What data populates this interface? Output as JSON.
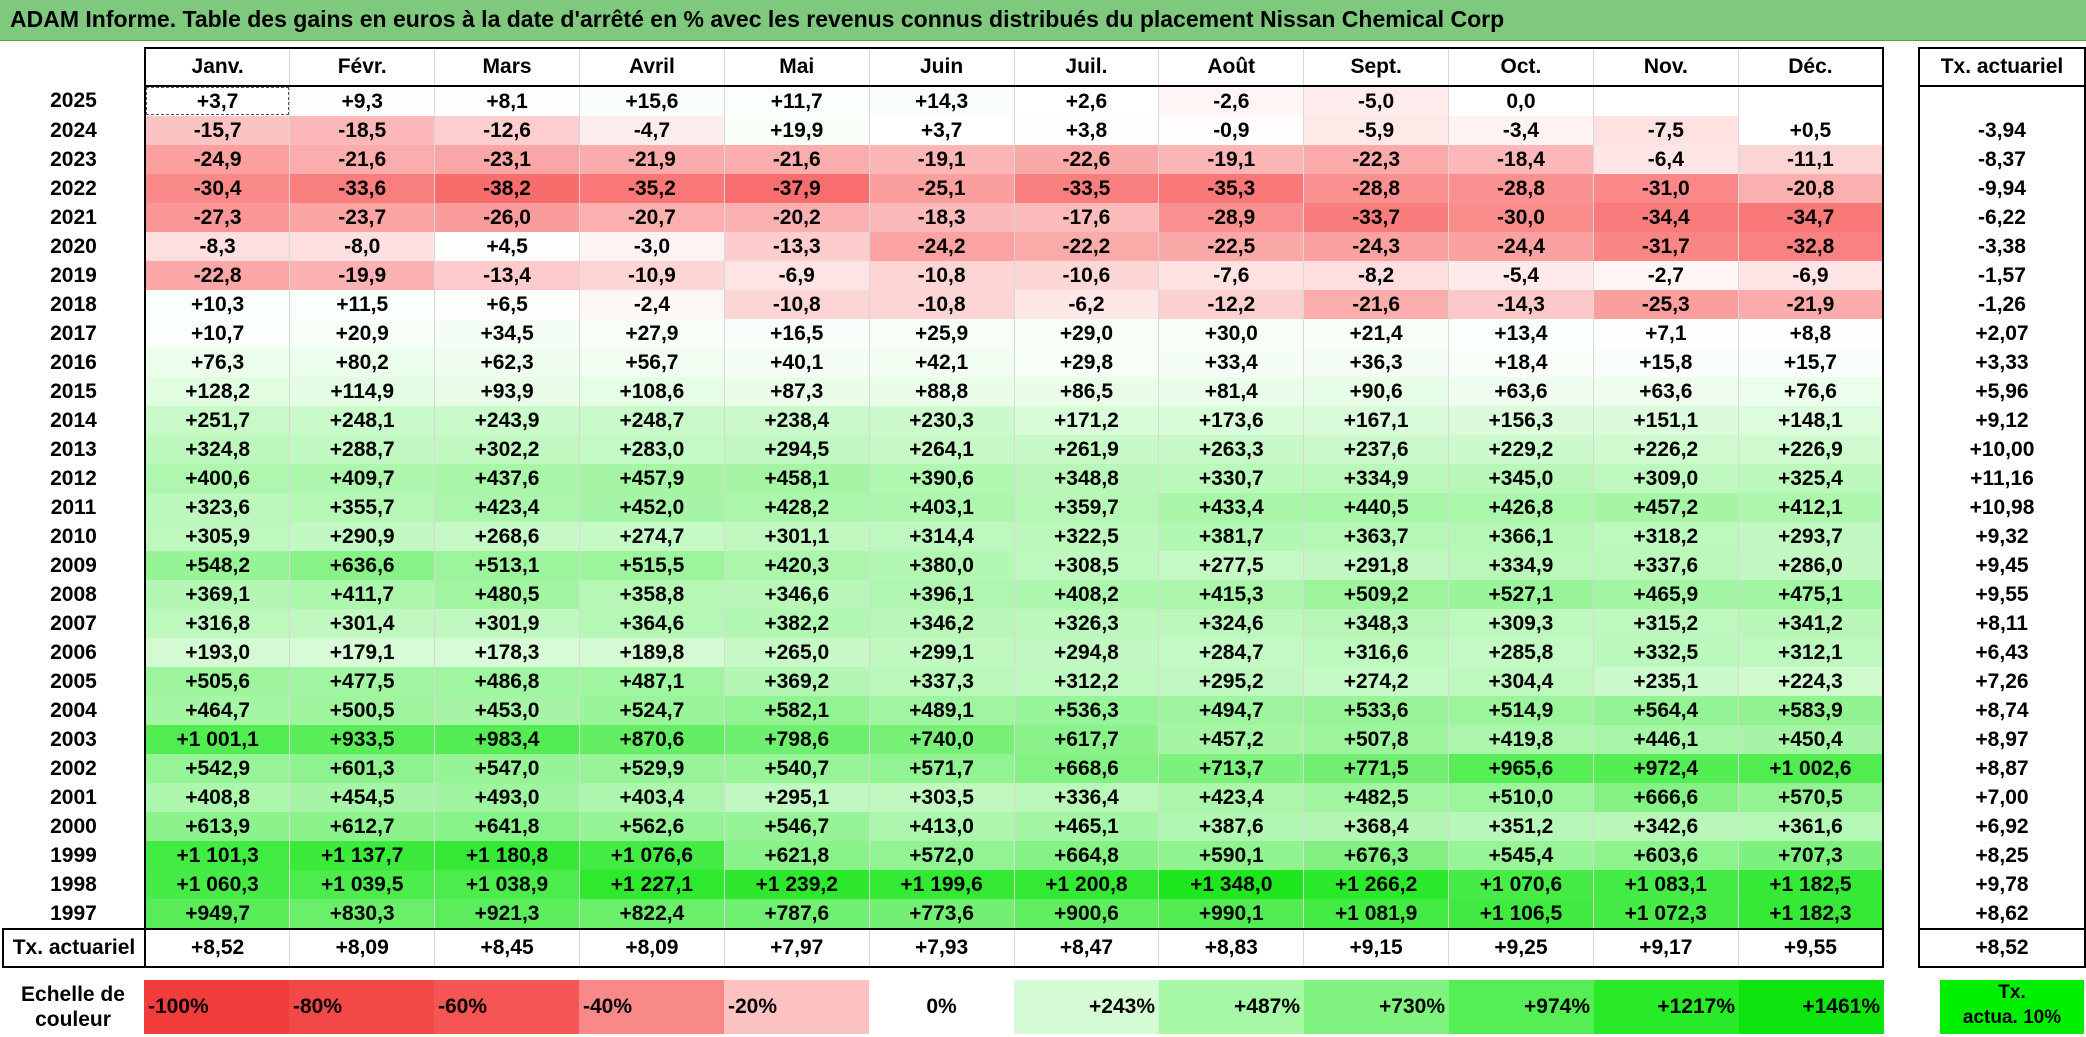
{
  "title": "ADAM Informe. Table des gains en euros à la date d'arrêté en % avec les revenus connus distribués du placement Nissan Chemical Corp",
  "months": [
    "Janv.",
    "Févr.",
    "Mars",
    "Avril",
    "Mai",
    "Juin",
    "Juil.",
    "Août",
    "Sept.",
    "Oct.",
    "Nov.",
    "Déc."
  ],
  "rate_header": "Tx. actuariel",
  "rows": [
    {
      "year": "2025",
      "values": [
        "+3,7",
        "+9,3",
        "+8,1",
        "+15,6",
        "+11,7",
        "+14,3",
        "+2,6",
        "-2,6",
        "-5,0",
        "0,0",
        "",
        ""
      ],
      "rate": ""
    },
    {
      "year": "2024",
      "values": [
        "-15,7",
        "-18,5",
        "-12,6",
        "-4,7",
        "+19,9",
        "+3,7",
        "+3,8",
        "-0,9",
        "-5,9",
        "-3,4",
        "-7,5",
        "+0,5"
      ],
      "rate": "-3,94"
    },
    {
      "year": "2023",
      "values": [
        "-24,9",
        "-21,6",
        "-23,1",
        "-21,9",
        "-21,6",
        "-19,1",
        "-22,6",
        "-19,1",
        "-22,3",
        "-18,4",
        "-6,4",
        "-11,1"
      ],
      "rate": "-8,37"
    },
    {
      "year": "2022",
      "values": [
        "-30,4",
        "-33,6",
        "-38,2",
        "-35,2",
        "-37,9",
        "-25,1",
        "-33,5",
        "-35,3",
        "-28,8",
        "-28,8",
        "-31,0",
        "-20,8"
      ],
      "rate": "-9,94"
    },
    {
      "year": "2021",
      "values": [
        "-27,3",
        "-23,7",
        "-26,0",
        "-20,7",
        "-20,2",
        "-18,3",
        "-17,6",
        "-28,9",
        "-33,7",
        "-30,0",
        "-34,4",
        "-34,7"
      ],
      "rate": "-6,22"
    },
    {
      "year": "2020",
      "values": [
        "-8,3",
        "-8,0",
        "+4,5",
        "-3,0",
        "-13,3",
        "-24,2",
        "-22,2",
        "-22,5",
        "-24,3",
        "-24,4",
        "-31,7",
        "-32,8"
      ],
      "rate": "-3,38"
    },
    {
      "year": "2019",
      "values": [
        "-22,8",
        "-19,9",
        "-13,4",
        "-10,9",
        "-6,9",
        "-10,8",
        "-10,6",
        "-7,6",
        "-8,2",
        "-5,4",
        "-2,7",
        "-6,9"
      ],
      "rate": "-1,57"
    },
    {
      "year": "2018",
      "values": [
        "+10,3",
        "+11,5",
        "+6,5",
        "-2,4",
        "-10,8",
        "-10,8",
        "-6,2",
        "-12,2",
        "-21,6",
        "-14,3",
        "-25,3",
        "-21,9"
      ],
      "rate": "-1,26"
    },
    {
      "year": "2017",
      "values": [
        "+10,7",
        "+20,9",
        "+34,5",
        "+27,9",
        "+16,5",
        "+25,9",
        "+29,0",
        "+30,0",
        "+21,4",
        "+13,4",
        "+7,1",
        "+8,8"
      ],
      "rate": "+2,07"
    },
    {
      "year": "2016",
      "values": [
        "+76,3",
        "+80,2",
        "+62,3",
        "+56,7",
        "+40,1",
        "+42,1",
        "+29,8",
        "+33,4",
        "+36,3",
        "+18,4",
        "+15,8",
        "+15,7"
      ],
      "rate": "+3,33"
    },
    {
      "year": "2015",
      "values": [
        "+128,2",
        "+114,9",
        "+93,9",
        "+108,6",
        "+87,3",
        "+88,8",
        "+86,5",
        "+81,4",
        "+90,6",
        "+63,6",
        "+63,6",
        "+76,6"
      ],
      "rate": "+5,96"
    },
    {
      "year": "2014",
      "values": [
        "+251,7",
        "+248,1",
        "+243,9",
        "+248,7",
        "+238,4",
        "+230,3",
        "+171,2",
        "+173,6",
        "+167,1",
        "+156,3",
        "+151,1",
        "+148,1"
      ],
      "rate": "+9,12"
    },
    {
      "year": "2013",
      "values": [
        "+324,8",
        "+288,7",
        "+302,2",
        "+283,0",
        "+294,5",
        "+264,1",
        "+261,9",
        "+263,3",
        "+237,6",
        "+229,2",
        "+226,2",
        "+226,9"
      ],
      "rate": "+10,00"
    },
    {
      "year": "2012",
      "values": [
        "+400,6",
        "+409,7",
        "+437,6",
        "+457,9",
        "+458,1",
        "+390,6",
        "+348,8",
        "+330,7",
        "+334,9",
        "+345,0",
        "+309,0",
        "+325,4"
      ],
      "rate": "+11,16"
    },
    {
      "year": "2011",
      "values": [
        "+323,6",
        "+355,7",
        "+423,4",
        "+452,0",
        "+428,2",
        "+403,1",
        "+359,7",
        "+433,4",
        "+440,5",
        "+426,8",
        "+457,2",
        "+412,1"
      ],
      "rate": "+10,98"
    },
    {
      "year": "2010",
      "values": [
        "+305,9",
        "+290,9",
        "+268,6",
        "+274,7",
        "+301,1",
        "+314,4",
        "+322,5",
        "+381,7",
        "+363,7",
        "+366,1",
        "+318,2",
        "+293,7"
      ],
      "rate": "+9,32"
    },
    {
      "year": "2009",
      "values": [
        "+548,2",
        "+636,6",
        "+513,1",
        "+515,5",
        "+420,3",
        "+380,0",
        "+308,5",
        "+277,5",
        "+291,8",
        "+334,9",
        "+337,6",
        "+286,0"
      ],
      "rate": "+9,45"
    },
    {
      "year": "2008",
      "values": [
        "+369,1",
        "+411,7",
        "+480,5",
        "+358,8",
        "+346,6",
        "+396,1",
        "+408,2",
        "+415,3",
        "+509,2",
        "+527,1",
        "+465,9",
        "+475,1"
      ],
      "rate": "+9,55"
    },
    {
      "year": "2007",
      "values": [
        "+316,8",
        "+301,4",
        "+301,9",
        "+364,6",
        "+382,2",
        "+346,2",
        "+326,3",
        "+324,6",
        "+348,3",
        "+309,3",
        "+315,2",
        "+341,2"
      ],
      "rate": "+8,11"
    },
    {
      "year": "2006",
      "values": [
        "+193,0",
        "+179,1",
        "+178,3",
        "+189,8",
        "+265,0",
        "+299,1",
        "+294,8",
        "+284,7",
        "+316,6",
        "+285,8",
        "+332,5",
        "+312,1"
      ],
      "rate": "+6,43"
    },
    {
      "year": "2005",
      "values": [
        "+505,6",
        "+477,5",
        "+486,8",
        "+487,1",
        "+369,2",
        "+337,3",
        "+312,2",
        "+295,2",
        "+274,2",
        "+304,4",
        "+235,1",
        "+224,3"
      ],
      "rate": "+7,26"
    },
    {
      "year": "2004",
      "values": [
        "+464,7",
        "+500,5",
        "+453,0",
        "+524,7",
        "+582,1",
        "+489,1",
        "+536,3",
        "+494,7",
        "+533,6",
        "+514,9",
        "+564,4",
        "+583,9"
      ],
      "rate": "+8,74"
    },
    {
      "year": "2003",
      "values": [
        "+1 001,1",
        "+933,5",
        "+983,4",
        "+870,6",
        "+798,6",
        "+740,0",
        "+617,7",
        "+457,2",
        "+507,8",
        "+419,8",
        "+446,1",
        "+450,4"
      ],
      "rate": "+8,97"
    },
    {
      "year": "2002",
      "values": [
        "+542,9",
        "+601,3",
        "+547,0",
        "+529,9",
        "+540,7",
        "+571,7",
        "+668,6",
        "+713,7",
        "+771,5",
        "+965,6",
        "+972,4",
        "+1 002,6"
      ],
      "rate": "+8,87"
    },
    {
      "year": "2001",
      "values": [
        "+408,8",
        "+454,5",
        "+493,0",
        "+403,4",
        "+295,1",
        "+303,5",
        "+336,4",
        "+423,4",
        "+482,5",
        "+510,0",
        "+666,6",
        "+570,5"
      ],
      "rate": "+7,00"
    },
    {
      "year": "2000",
      "values": [
        "+613,9",
        "+612,7",
        "+641,8",
        "+562,6",
        "+546,7",
        "+413,0",
        "+465,1",
        "+387,6",
        "+368,4",
        "+351,2",
        "+342,6",
        "+361,6"
      ],
      "rate": "+6,92"
    },
    {
      "year": "1999",
      "values": [
        "+1 101,3",
        "+1 137,7",
        "+1 180,8",
        "+1 076,6",
        "+621,8",
        "+572,0",
        "+664,8",
        "+590,1",
        "+676,3",
        "+545,4",
        "+603,6",
        "+707,3"
      ],
      "rate": "+8,25"
    },
    {
      "year": "1998",
      "values": [
        "+1 060,3",
        "+1 039,5",
        "+1 038,9",
        "+1 227,1",
        "+1 239,2",
        "+1 199,6",
        "+1 200,8",
        "+1 348,0",
        "+1 266,2",
        "+1 070,6",
        "+1 083,1",
        "+1 182,5"
      ],
      "rate": "+9,78"
    },
    {
      "year": "1997",
      "values": [
        "+949,7",
        "+830,3",
        "+921,3",
        "+822,4",
        "+787,6",
        "+773,6",
        "+900,6",
        "+990,1",
        "+1 081,9",
        "+1 106,5",
        "+1 072,3",
        "+1 182,3"
      ],
      "rate": "+8,62"
    }
  ],
  "footer": {
    "label": "Tx. actuariel",
    "values": [
      "+8,52",
      "+8,09",
      "+8,45",
      "+8,09",
      "+7,97",
      "+7,93",
      "+8,47",
      "+8,83",
      "+9,15",
      "+9,25",
      "+9,17",
      "+9,55"
    ],
    "rate": "+8,52"
  },
  "scale": {
    "label_line1": "Echelle de",
    "label_line2": "couleur",
    "steps": [
      {
        "text": "-100%",
        "color": "#f23c3c",
        "align": "neg"
      },
      {
        "text": "-80%",
        "color": "#f34848",
        "align": "neg"
      },
      {
        "text": "-60%",
        "color": "#f55555",
        "align": "neg"
      },
      {
        "text": "-40%",
        "color": "#f98989",
        "align": "neg"
      },
      {
        "text": "-20%",
        "color": "#fcc2c2",
        "align": "neg"
      },
      {
        "text": "0%",
        "color": "#ffffff",
        "align": "zero"
      },
      {
        "text": "+243%",
        "color": "#d4fbd4",
        "align": "pos"
      },
      {
        "text": "+487%",
        "color": "#a6f7a6",
        "align": "pos"
      },
      {
        "text": "+730%",
        "color": "#80f280",
        "align": "pos"
      },
      {
        "text": "+974%",
        "color": "#55ee55",
        "align": "pos"
      },
      {
        "text": "+1217%",
        "color": "#28ea28",
        "align": "pos"
      },
      {
        "text": "+1461%",
        "color": "#0ee50e",
        "align": "pos"
      }
    ],
    "actua_line1": "Tx.",
    "actua_line2": "actua. 10%",
    "actua_color": "#00ee00"
  },
  "colors": {
    "title_bg": "#7fc97f",
    "negative_max": "#f23c3c",
    "positive_max": "#0ee50e",
    "neutral": "#ffffff"
  }
}
